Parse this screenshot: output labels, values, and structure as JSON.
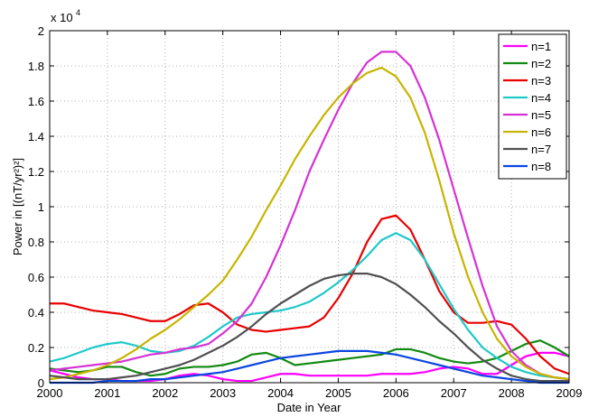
{
  "chart_data": {
    "type": "line",
    "xlabel": "Date in Year",
    "ylabel": "Power in [(nT/yr²)²]",
    "y_scale_label": "x 10",
    "y_scale_exponent": "4",
    "x": [
      2000,
      2000.25,
      2000.5,
      2000.75,
      2001,
      2001.25,
      2001.5,
      2001.75,
      2002,
      2002.25,
      2002.5,
      2002.75,
      2003,
      2003.25,
      2003.5,
      2003.75,
      2004,
      2004.25,
      2004.5,
      2004.75,
      2005,
      2005.25,
      2005.5,
      2005.75,
      2006,
      2006.25,
      2006.5,
      2006.75,
      2007,
      2007.25,
      2007.5,
      2007.75,
      2008,
      2008.25,
      2008.5,
      2008.75,
      2009
    ],
    "xlim": [
      2000,
      2009
    ],
    "xticks": [
      2000,
      2001,
      2002,
      2003,
      2004,
      2005,
      2006,
      2007,
      2008,
      2009
    ],
    "ylim": [
      0,
      2
    ],
    "yticks": [
      0,
      0.2,
      0.4,
      0.6,
      0.8,
      1,
      1.2,
      1.4,
      1.6,
      1.8,
      2
    ],
    "grid": true,
    "legend": "upper right",
    "series": [
      {
        "name": "n=1",
        "color": "#ff00ff",
        "values": [
          0.07,
          0.05,
          0.03,
          0.02,
          0.02,
          0.01,
          0.01,
          0.01,
          0.02,
          0.04,
          0.05,
          0.04,
          0.02,
          0.01,
          0.01,
          0.03,
          0.05,
          0.05,
          0.04,
          0.04,
          0.04,
          0.04,
          0.04,
          0.05,
          0.05,
          0.05,
          0.06,
          0.08,
          0.09,
          0.08,
          0.05,
          0.05,
          0.1,
          0.15,
          0.17,
          0.17,
          0.15
        ]
      },
      {
        "name": "n=2",
        "color": "#128a12",
        "values": [
          0.08,
          0.07,
          0.06,
          0.07,
          0.09,
          0.09,
          0.06,
          0.04,
          0.05,
          0.08,
          0.09,
          0.09,
          0.1,
          0.12,
          0.16,
          0.17,
          0.14,
          0.1,
          0.11,
          0.12,
          0.13,
          0.14,
          0.15,
          0.16,
          0.19,
          0.19,
          0.17,
          0.14,
          0.12,
          0.11,
          0.12,
          0.14,
          0.18,
          0.22,
          0.24,
          0.2,
          0.15
        ]
      },
      {
        "name": "n=3",
        "color": "#e80000",
        "values": [
          0.45,
          0.45,
          0.43,
          0.41,
          0.4,
          0.39,
          0.37,
          0.35,
          0.35,
          0.39,
          0.44,
          0.45,
          0.4,
          0.33,
          0.3,
          0.29,
          0.3,
          0.31,
          0.32,
          0.37,
          0.48,
          0.62,
          0.8,
          0.93,
          0.95,
          0.87,
          0.7,
          0.52,
          0.4,
          0.34,
          0.34,
          0.35,
          0.33,
          0.25,
          0.15,
          0.08,
          0.05
        ]
      },
      {
        "name": "n=4",
        "color": "#20c8c8",
        "values": [
          0.12,
          0.14,
          0.17,
          0.2,
          0.22,
          0.23,
          0.21,
          0.18,
          0.17,
          0.18,
          0.21,
          0.26,
          0.32,
          0.37,
          0.39,
          0.4,
          0.41,
          0.43,
          0.46,
          0.51,
          0.57,
          0.64,
          0.72,
          0.81,
          0.85,
          0.81,
          0.7,
          0.56,
          0.42,
          0.3,
          0.2,
          0.14,
          0.09,
          0.06,
          0.04,
          0.03,
          0.02
        ]
      },
      {
        "name": "n=5",
        "color": "#d632d6",
        "values": [
          0.07,
          0.08,
          0.09,
          0.1,
          0.11,
          0.12,
          0.14,
          0.16,
          0.17,
          0.19,
          0.2,
          0.22,
          0.28,
          0.35,
          0.45,
          0.6,
          0.78,
          0.98,
          1.2,
          1.38,
          1.55,
          1.7,
          1.82,
          1.88,
          1.88,
          1.8,
          1.62,
          1.38,
          1.1,
          0.82,
          0.55,
          0.32,
          0.18,
          0.1,
          0.05,
          0.03,
          0.02
        ]
      },
      {
        "name": "n=6",
        "color": "#c8b400",
        "values": [
          0.02,
          0.03,
          0.05,
          0.07,
          0.1,
          0.14,
          0.19,
          0.25,
          0.3,
          0.36,
          0.43,
          0.5,
          0.58,
          0.7,
          0.83,
          0.98,
          1.12,
          1.27,
          1.4,
          1.52,
          1.62,
          1.7,
          1.76,
          1.79,
          1.74,
          1.62,
          1.42,
          1.15,
          0.85,
          0.6,
          0.4,
          0.25,
          0.15,
          0.09,
          0.05,
          0.03,
          0.02
        ]
      },
      {
        "name": "n=7",
        "color": "#505050",
        "values": [
          0.04,
          0.03,
          0.02,
          0.02,
          0.02,
          0.03,
          0.04,
          0.06,
          0.08,
          0.1,
          0.13,
          0.17,
          0.21,
          0.26,
          0.32,
          0.39,
          0.45,
          0.5,
          0.55,
          0.59,
          0.61,
          0.62,
          0.62,
          0.6,
          0.56,
          0.5,
          0.43,
          0.35,
          0.28,
          0.2,
          0.13,
          0.08,
          0.04,
          0.02,
          0.01,
          0.01,
          0.01
        ]
      },
      {
        "name": "n=8",
        "color": "#0a46e0",
        "values": [
          0,
          0,
          0,
          0,
          0.01,
          0.01,
          0.01,
          0.02,
          0.02,
          0.03,
          0.04,
          0.05,
          0.06,
          0.08,
          0.1,
          0.12,
          0.14,
          0.15,
          0.16,
          0.17,
          0.18,
          0.18,
          0.18,
          0.17,
          0.16,
          0.14,
          0.12,
          0.1,
          0.08,
          0.06,
          0.04,
          0.03,
          0.02,
          0.01,
          0,
          0,
          0
        ]
      }
    ]
  }
}
